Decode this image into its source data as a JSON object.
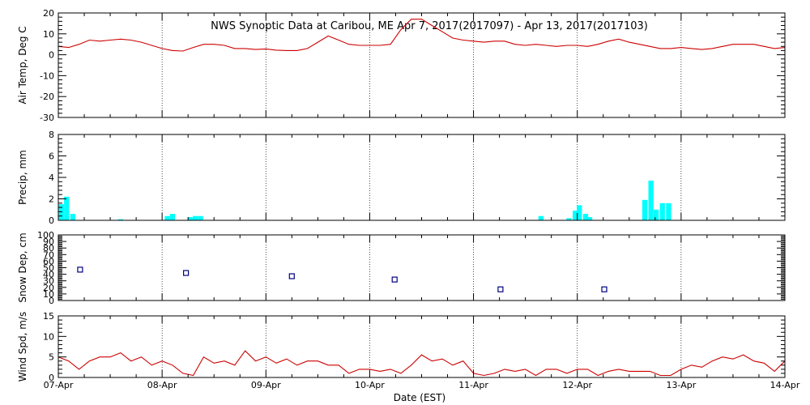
{
  "title": "NWS Synoptic Data at Caribou, ME   Apr  7, 2017(2017097) - Apr 13, 2017(2017103)",
  "xlabel": "Date (EST)",
  "dates": [
    "07-Apr",
    "08-Apr",
    "09-Apr",
    "10-Apr",
    "11-Apr",
    "12-Apr",
    "13-Apr",
    "14-Apr"
  ],
  "colors": {
    "line": "#cc0000",
    "precip": "#00ffff",
    "snow": "#000080",
    "axis": "#000000"
  },
  "chart_data": [
    {
      "type": "line",
      "name": "air_temp",
      "ylabel": "Air Temp, Deg C",
      "ylim": [
        -30,
        20
      ],
      "yticks": [
        -30,
        -20,
        -10,
        0,
        10,
        20
      ],
      "xlim": [
        0,
        7
      ],
      "x": [
        0,
        0.1,
        0.2,
        0.3,
        0.4,
        0.5,
        0.6,
        0.7,
        0.8,
        0.9,
        1.0,
        1.1,
        1.2,
        1.3,
        1.4,
        1.5,
        1.6,
        1.7,
        1.8,
        1.9,
        2.0,
        2.1,
        2.2,
        2.3,
        2.4,
        2.5,
        2.6,
        2.7,
        2.8,
        2.9,
        3.0,
        3.1,
        3.2,
        3.3,
        3.4,
        3.5,
        3.6,
        3.7,
        3.8,
        3.9,
        4.0,
        4.1,
        4.2,
        4.3,
        4.4,
        4.5,
        4.6,
        4.7,
        4.8,
        4.9,
        5.0,
        5.1,
        5.2,
        5.3,
        5.4,
        5.5,
        5.6,
        5.7,
        5.8,
        5.9,
        6.0,
        6.1,
        6.2,
        6.3,
        6.4,
        6.5,
        6.6,
        6.7,
        6.8,
        6.9,
        7.0
      ],
      "values": [
        4,
        3.5,
        5,
        7,
        6.5,
        7,
        7.5,
        7,
        6,
        4.5,
        3,
        2,
        1.8,
        3.5,
        5,
        5,
        4.5,
        3,
        3,
        2.5,
        2.8,
        2.2,
        2,
        2,
        3,
        6,
        9,
        7,
        5,
        4.5,
        4.5,
        4.5,
        5,
        12,
        17,
        17,
        14,
        11,
        8,
        7,
        6.5,
        6,
        6.5,
        6.5,
        5,
        4.5,
        5,
        4.5,
        4,
        4.5,
        4.5,
        4,
        5,
        6.5,
        7.5,
        6,
        5,
        4,
        3,
        3,
        3.5,
        3,
        2.5,
        3,
        4,
        5,
        5,
        5,
        4,
        3,
        3.5
      ]
    },
    {
      "type": "bar",
      "name": "precip",
      "ylabel": "Precip, mm",
      "ylim": [
        0,
        8
      ],
      "yticks": [
        0,
        2,
        4,
        6,
        8
      ],
      "xlim": [
        0,
        7
      ],
      "x": [
        0.03,
        0.08,
        0.14,
        0.6,
        1.05,
        1.1,
        1.27,
        1.32,
        1.37,
        4.65,
        4.92,
        4.98,
        5.02,
        5.08,
        5.12,
        5.65,
        5.71,
        5.76,
        5.82,
        5.88
      ],
      "values": [
        1.5,
        2.2,
        0.6,
        0.1,
        0.4,
        0.6,
        0.3,
        0.4,
        0.4,
        0.4,
        0.2,
        0.9,
        1.4,
        0.6,
        0.3,
        1.9,
        3.7,
        1.0,
        1.6,
        1.6
      ]
    },
    {
      "type": "scatter",
      "name": "snow_depth",
      "ylabel": "Snow Dep, cm",
      "ylim": [
        0,
        100
      ],
      "yticks": [
        0,
        10,
        20,
        30,
        40,
        50,
        60,
        70,
        80,
        90,
        100
      ],
      "xlim": [
        0,
        7
      ],
      "x": [
        0.21,
        1.23,
        2.25,
        3.24,
        4.26,
        5.26
      ],
      "values": [
        47,
        42,
        37,
        32,
        17,
        17
      ]
    },
    {
      "type": "line",
      "name": "wind_speed",
      "ylabel": "Wind Spd, m/s",
      "ylim": [
        0,
        15
      ],
      "yticks": [
        0,
        5,
        10,
        15
      ],
      "xlim": [
        0,
        7
      ],
      "x": [
        0,
        0.1,
        0.2,
        0.3,
        0.4,
        0.5,
        0.6,
        0.7,
        0.8,
        0.9,
        1.0,
        1.1,
        1.2,
        1.3,
        1.4,
        1.5,
        1.6,
        1.7,
        1.8,
        1.9,
        2.0,
        2.1,
        2.2,
        2.3,
        2.4,
        2.5,
        2.6,
        2.7,
        2.8,
        2.9,
        3.0,
        3.1,
        3.2,
        3.3,
        3.4,
        3.5,
        3.6,
        3.7,
        3.8,
        3.9,
        4.0,
        4.1,
        4.2,
        4.3,
        4.4,
        4.5,
        4.6,
        4.7,
        4.8,
        4.9,
        5.0,
        5.1,
        5.2,
        5.3,
        5.4,
        5.5,
        5.6,
        5.7,
        5.8,
        5.9,
        6.0,
        6.1,
        6.2,
        6.3,
        6.4,
        6.5,
        6.6,
        6.7,
        6.8,
        6.9,
        7.0
      ],
      "values": [
        5,
        4,
        2,
        4,
        5,
        5,
        6,
        4,
        5,
        3,
        4,
        3,
        1,
        0.5,
        5,
        3.5,
        4,
        3,
        6.5,
        4,
        5,
        3.5,
        4.5,
        3,
        4,
        4,
        3,
        3,
        1,
        2,
        2,
        1.5,
        2,
        1,
        3,
        5.5,
        4,
        4.5,
        3,
        4,
        1,
        0.5,
        1,
        2,
        1.5,
        2,
        0.5,
        2,
        2,
        1,
        2,
        2,
        0.5,
        1.5,
        2,
        1.5,
        1.5,
        1.5,
        0.5,
        0.5,
        2,
        3,
        2.5,
        4,
        5,
        4.5,
        5.5,
        4,
        3.5,
        1.5,
        4
      ]
    }
  ]
}
